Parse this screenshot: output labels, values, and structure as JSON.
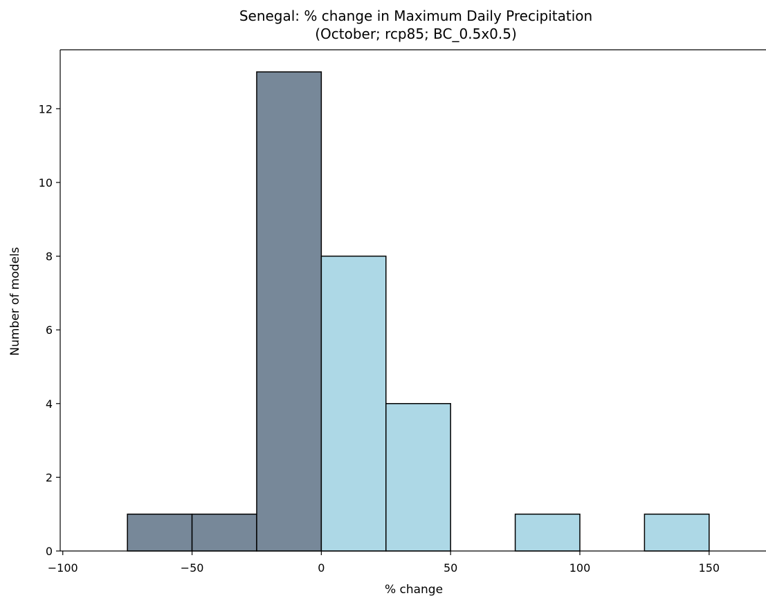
{
  "chart_data": {
    "type": "bar",
    "title": "Senegal: % change in Maximum Daily Precipitation",
    "subtitle": "(October; rcp85; BC_0.5x0.5)",
    "xlabel": "% change",
    "ylabel": "Number of models",
    "xlim": [
      -101,
      172
    ],
    "ylim": [
      0,
      13.6
    ],
    "x_ticks": [
      -100,
      -50,
      0,
      50,
      100,
      150
    ],
    "x_tick_labels": [
      "−100",
      "−50",
      "0",
      "50",
      "100",
      "150"
    ],
    "y_ticks": [
      0,
      2,
      4,
      6,
      8,
      10,
      12
    ],
    "y_tick_labels": [
      "0",
      "2",
      "4",
      "6",
      "8",
      "10",
      "12"
    ],
    "grid": false,
    "colors": {
      "negative": "#778899",
      "positive": "#add8e6",
      "edge": "#000000"
    },
    "bins": [
      {
        "start": -75,
        "end": -50,
        "count": 1,
        "sign": "negative"
      },
      {
        "start": -50,
        "end": -25,
        "count": 1,
        "sign": "negative"
      },
      {
        "start": -25,
        "end": 0,
        "count": 13,
        "sign": "negative"
      },
      {
        "start": 0,
        "end": 25,
        "count": 8,
        "sign": "positive"
      },
      {
        "start": 25,
        "end": 50,
        "count": 4,
        "sign": "positive"
      },
      {
        "start": 50,
        "end": 75,
        "count": 0,
        "sign": "positive"
      },
      {
        "start": 75,
        "end": 100,
        "count": 1,
        "sign": "positive"
      },
      {
        "start": 100,
        "end": 125,
        "count": 0,
        "sign": "positive"
      },
      {
        "start": 125,
        "end": 150,
        "count": 1,
        "sign": "positive"
      }
    ]
  }
}
